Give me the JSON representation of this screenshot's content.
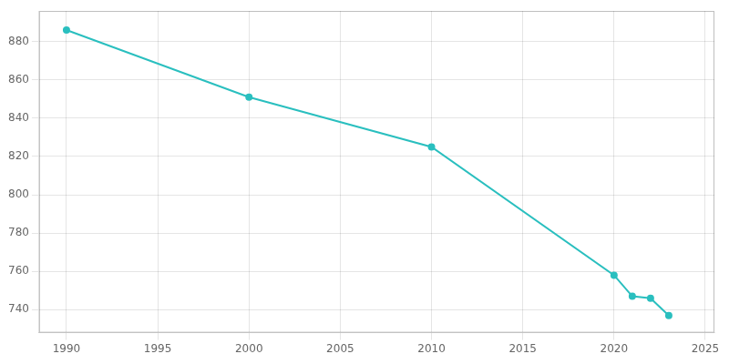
{
  "chart_data": {
    "type": "line",
    "x": [
      1990,
      2000,
      2010,
      2020,
      2021,
      2022,
      2023
    ],
    "values": [
      886,
      851,
      825,
      758,
      747,
      746,
      737
    ],
    "color": "#2abfbf",
    "marker": "circle",
    "xlim": [
      1988.5,
      2025.5
    ],
    "xticks": [
      1990,
      1995,
      2000,
      2005,
      2010,
      2015,
      2020,
      2025
    ],
    "ylim": [
      728,
      896
    ],
    "yticks": [
      740,
      760,
      780,
      800,
      820,
      840,
      860,
      880
    ],
    "grid": true
  }
}
